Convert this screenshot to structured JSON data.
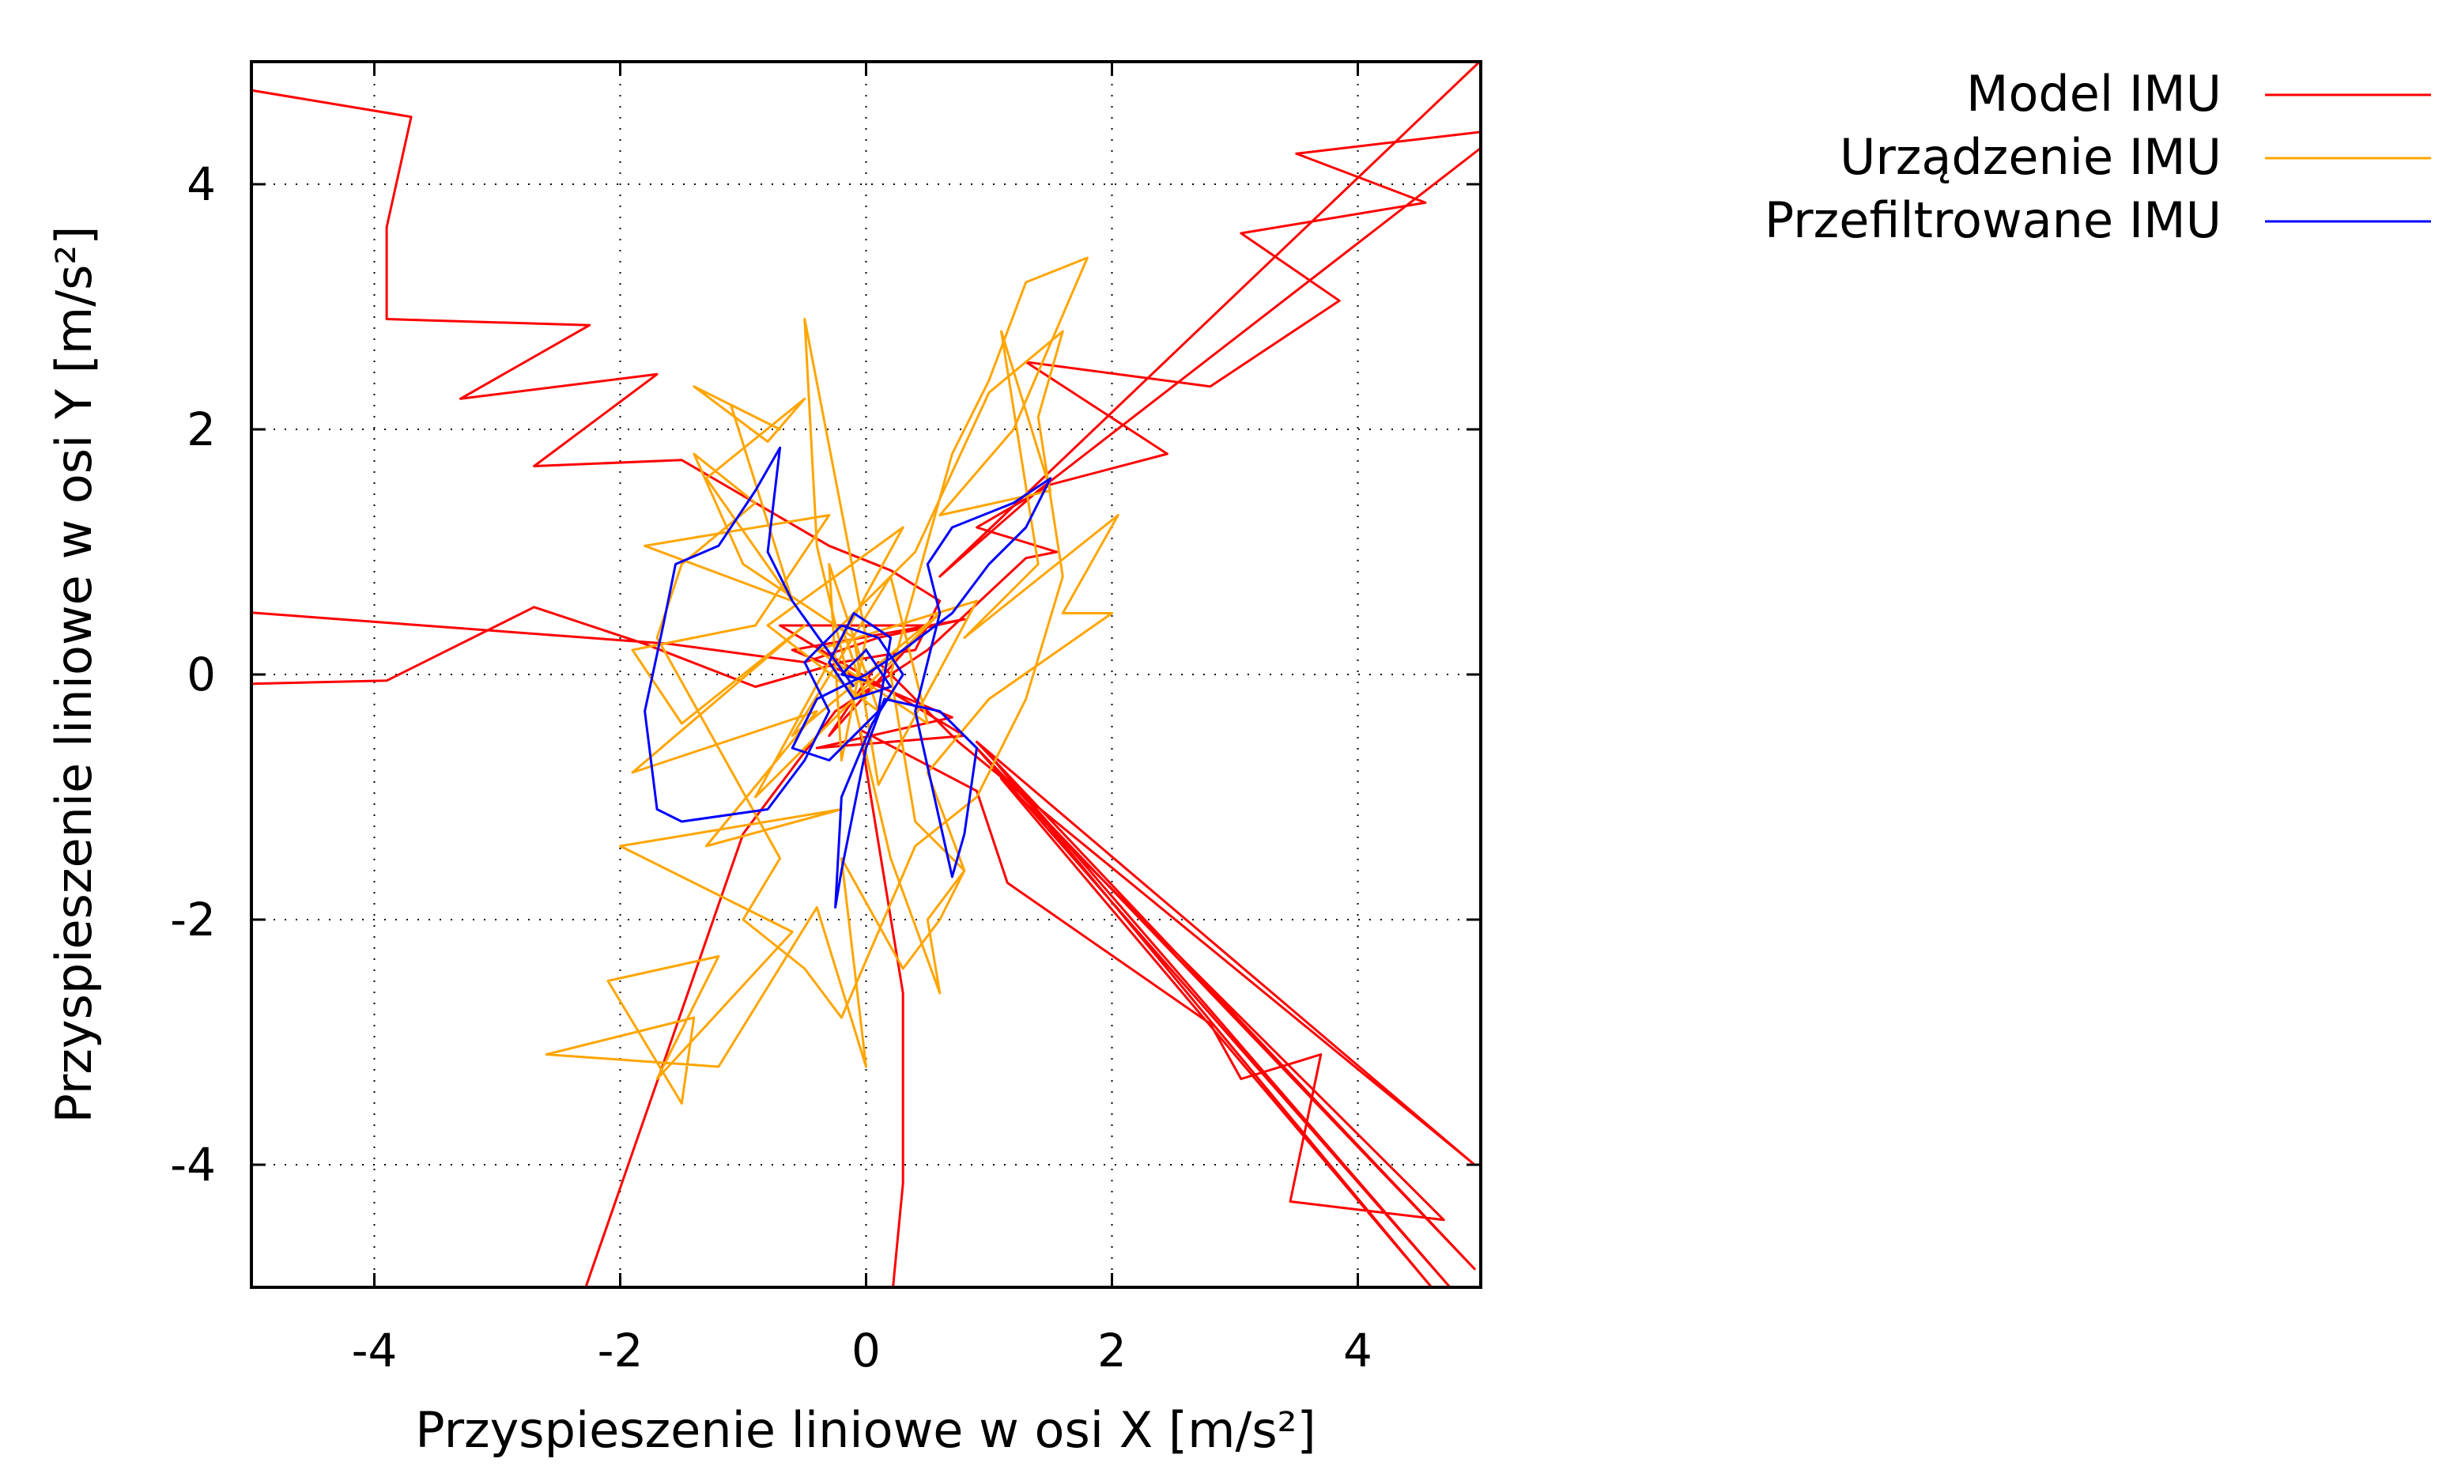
{
  "chart_data": {
    "type": "line",
    "xlabel": "Przyspieszenie liniowe w osi X [m/s²]",
    "ylabel": "Przyspieszenie liniowe w osi Y [m/s²]",
    "xlim": [
      -5,
      5
    ],
    "ylim": [
      -5,
      5
    ],
    "x_ticks": [
      -4,
      -2,
      0,
      2,
      4
    ],
    "y_ticks": [
      -4,
      -2,
      0,
      2,
      4
    ],
    "grid": true,
    "grid_style": "dotted",
    "legend_position": "top-right, outside plot",
    "series": [
      {
        "name": "Model IMU",
        "color": "#ff0000",
        "points": [
          [
            -5.2,
            4.8
          ],
          [
            -3.7,
            4.55
          ],
          [
            -3.9,
            3.65
          ],
          [
            -3.9,
            2.9
          ],
          [
            -2.25,
            2.85
          ],
          [
            -3.3,
            2.25
          ],
          [
            -1.7,
            2.45
          ],
          [
            -2.7,
            1.7
          ],
          [
            -1.5,
            1.75
          ],
          [
            -0.9,
            1.4
          ],
          [
            -0.3,
            1.05
          ],
          [
            0.2,
            0.85
          ],
          [
            0.6,
            0.6
          ],
          [
            0.4,
            0.2
          ],
          [
            -0.2,
            0.1
          ],
          [
            -0.9,
            -0.1
          ],
          [
            -1.8,
            0.25
          ],
          [
            -2.7,
            0.55
          ],
          [
            -3.9,
            -0.05
          ],
          [
            -5.2,
            -0.08
          ],
          [
            -5.2,
            0.52
          ],
          [
            -1.6,
            0.25
          ],
          [
            -0.5,
            0.1
          ],
          [
            0.1,
            0.3
          ],
          [
            0.8,
            0.45
          ],
          [
            -0.6,
            0.2
          ],
          [
            0.7,
            -0.35
          ],
          [
            -0.4,
            -0.6
          ],
          [
            0.8,
            -0.5
          ],
          [
            -0.7,
            0.4
          ],
          [
            0.5,
            0.4
          ],
          [
            -0.3,
            -0.5
          ],
          [
            0.1,
            0.1
          ],
          [
            0.75,
            -0.55
          ],
          [
            4.95,
            -4.0
          ],
          [
            0.9,
            -0.55
          ],
          [
            4.95,
            -4.85
          ],
          [
            0.9,
            -0.6
          ],
          [
            4.75,
            -5.0
          ],
          [
            1.0,
            -0.65
          ],
          [
            4.6,
            -5.0
          ],
          [
            1.1,
            -0.85
          ],
          [
            4.7,
            -4.45
          ],
          [
            3.45,
            -4.3
          ],
          [
            3.7,
            -3.1
          ],
          [
            3.05,
            -3.3
          ],
          [
            2.8,
            -2.85
          ],
          [
            1.15,
            -1.7
          ],
          [
            0.9,
            -0.95
          ],
          [
            -0.05,
            -0.45
          ],
          [
            0.3,
            -2.6
          ],
          [
            0.3,
            -4.15
          ],
          [
            0.2,
            -5.2
          ],
          [
            -2.35,
            -5.2
          ],
          [
            -1.0,
            -1.3
          ],
          [
            -0.25,
            -0.3
          ],
          [
            0.5,
            0.2
          ],
          [
            1.3,
            0.95
          ],
          [
            1.55,
            1.0
          ],
          [
            0.9,
            1.2
          ],
          [
            1.5,
            1.55
          ],
          [
            2.45,
            1.8
          ],
          [
            1.3,
            2.55
          ],
          [
            2.8,
            2.35
          ],
          [
            3.85,
            3.05
          ],
          [
            3.05,
            3.6
          ],
          [
            4.55,
            3.85
          ],
          [
            3.5,
            4.25
          ],
          [
            5.2,
            4.45
          ],
          [
            1.4,
            1.5
          ],
          [
            0.6,
            0.8
          ],
          [
            5.2,
            5.2
          ]
        ]
      },
      {
        "name": "Urządzenie IMU",
        "color": "#ffa500",
        "points": [
          [
            -0.6,
            0.6
          ],
          [
            -1.1,
            2.2
          ],
          [
            -0.7,
            2.0
          ],
          [
            -1.4,
            2.35
          ],
          [
            -0.8,
            1.9
          ],
          [
            -0.5,
            2.25
          ],
          [
            -1.3,
            1.6
          ],
          [
            -0.6,
            0.6
          ],
          [
            -1.8,
            1.05
          ],
          [
            -0.3,
            1.3
          ],
          [
            -0.9,
            0.4
          ],
          [
            -1.9,
            0.2
          ],
          [
            -1.5,
            -0.4
          ],
          [
            -0.5,
            0.4
          ],
          [
            -1.9,
            -0.8
          ],
          [
            -0.4,
            -0.3
          ],
          [
            -1.3,
            -1.4
          ],
          [
            -0.2,
            -1.1
          ],
          [
            -2.0,
            -1.4
          ],
          [
            -0.6,
            -2.1
          ],
          [
            -1.7,
            -3.3
          ],
          [
            -1.2,
            -2.3
          ],
          [
            -2.1,
            -2.5
          ],
          [
            -1.5,
            -3.5
          ],
          [
            -1.4,
            -2.8
          ],
          [
            -2.6,
            -3.1
          ],
          [
            -1.2,
            -3.2
          ],
          [
            -0.4,
            -1.9
          ],
          [
            0.0,
            -3.2
          ],
          [
            -0.2,
            -1.5
          ],
          [
            0.3,
            -2.4
          ],
          [
            0.6,
            -2.0
          ],
          [
            0.8,
            -1.6
          ],
          [
            0.4,
            -1.2
          ],
          [
            0.2,
            0.0
          ],
          [
            0.7,
            1.8
          ],
          [
            1.0,
            2.4
          ],
          [
            1.3,
            3.2
          ],
          [
            1.8,
            3.4
          ],
          [
            1.2,
            2.0
          ],
          [
            0.6,
            1.3
          ],
          [
            1.5,
            1.5
          ],
          [
            1.1,
            2.8
          ],
          [
            1.4,
            0.9
          ],
          [
            0.8,
            0.3
          ],
          [
            2.05,
            1.3
          ],
          [
            1.6,
            0.5
          ],
          [
            2.0,
            0.5
          ],
          [
            1.0,
            -0.2
          ],
          [
            0.5,
            -0.8
          ],
          [
            0.8,
            -1.6
          ],
          [
            0.5,
            -2.0
          ],
          [
            0.6,
            -2.6
          ],
          [
            0.2,
            -1.5
          ],
          [
            -0.4,
            1.05
          ],
          [
            -0.5,
            2.9
          ],
          [
            0.0,
            0.3
          ],
          [
            -0.2,
            -0.7
          ],
          [
            -0.3,
            0.9
          ],
          [
            0.1,
            -0.3
          ],
          [
            -0.8,
            0.4
          ],
          [
            0.3,
            1.2
          ],
          [
            -0.9,
            -1.0
          ],
          [
            0.6,
            0.5
          ],
          [
            -0.6,
            -0.5
          ],
          [
            0.2,
            0.8
          ],
          [
            0.5,
            -0.4
          ],
          [
            -0.4,
            0.2
          ],
          [
            0.9,
            0.6
          ],
          [
            0.1,
            -0.9
          ],
          [
            -0.1,
            0.3
          ],
          [
            -1.0,
            0.9
          ],
          [
            -1.4,
            1.8
          ],
          [
            -0.9,
            1.4
          ],
          [
            -1.5,
            0.9
          ],
          [
            -1.7,
            0.3
          ],
          [
            -1.2,
            -0.6
          ],
          [
            -0.7,
            -1.5
          ],
          [
            -1.0,
            -2.0
          ],
          [
            -0.5,
            -2.4
          ],
          [
            -0.2,
            -2.8
          ],
          [
            0.1,
            -2.1
          ],
          [
            0.4,
            -1.4
          ],
          [
            0.9,
            -1.0
          ],
          [
            1.3,
            -0.2
          ],
          [
            1.6,
            0.8
          ],
          [
            1.4,
            2.1
          ],
          [
            1.6,
            2.8
          ],
          [
            1.0,
            2.3
          ],
          [
            0.4,
            1.0
          ],
          [
            -0.2,
            0.4
          ],
          [
            0.0,
            -0.2
          ]
        ]
      },
      {
        "name": "Przefiltrowane IMU",
        "color": "#0000ff",
        "points": [
          [
            -0.1,
            -0.1
          ],
          [
            -0.6,
            0.6
          ],
          [
            -0.8,
            1.0
          ],
          [
            -0.7,
            1.85
          ],
          [
            -0.9,
            1.5
          ],
          [
            -1.2,
            1.05
          ],
          [
            -1.55,
            0.9
          ],
          [
            -1.65,
            0.4
          ],
          [
            -1.8,
            -0.3
          ],
          [
            -1.7,
            -1.1
          ],
          [
            -1.5,
            -1.2
          ],
          [
            -0.8,
            -1.1
          ],
          [
            -0.5,
            -0.7
          ],
          [
            -0.3,
            -0.3
          ],
          [
            -0.5,
            0.1
          ],
          [
            -0.2,
            0.4
          ],
          [
            0.1,
            0.3
          ],
          [
            0.3,
            0.0
          ],
          [
            0.05,
            -0.4
          ],
          [
            -0.2,
            -1.0
          ],
          [
            -0.25,
            -1.9
          ],
          [
            -0.2,
            -1.6
          ],
          [
            0.0,
            -0.6
          ],
          [
            0.15,
            -0.2
          ],
          [
            0.6,
            -0.3
          ],
          [
            0.9,
            -0.6
          ],
          [
            0.8,
            -1.3
          ],
          [
            0.7,
            -1.65
          ],
          [
            0.6,
            -1.2
          ],
          [
            0.4,
            -0.3
          ],
          [
            0.6,
            0.5
          ],
          [
            0.5,
            0.9
          ],
          [
            0.7,
            1.2
          ],
          [
            1.2,
            1.4
          ],
          [
            1.5,
            1.6
          ],
          [
            1.3,
            1.2
          ],
          [
            1.0,
            0.9
          ],
          [
            0.7,
            0.5
          ],
          [
            0.3,
            0.2
          ],
          [
            0.0,
            0.0
          ],
          [
            -0.4,
            -0.2
          ],
          [
            -0.6,
            -0.6
          ],
          [
            -0.3,
            -0.7
          ],
          [
            0.1,
            -0.3
          ],
          [
            0.2,
            0.3
          ],
          [
            -0.1,
            0.5
          ],
          [
            -0.3,
            0.1
          ],
          [
            -0.1,
            -0.2
          ],
          [
            0.2,
            -0.1
          ],
          [
            0.0,
            0.2
          ],
          [
            -0.2,
            0.0
          ],
          [
            0.0,
            -0.05
          ]
        ]
      }
    ]
  }
}
